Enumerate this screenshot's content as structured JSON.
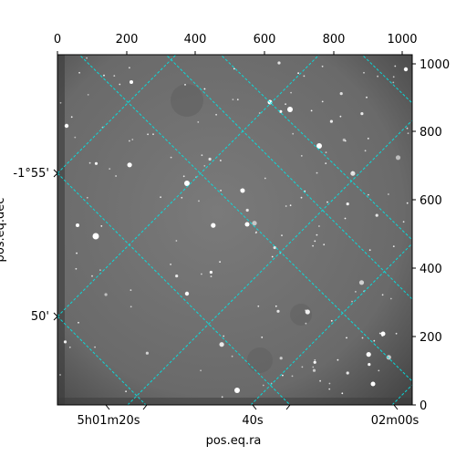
{
  "figure": {
    "top_axis": {
      "ticks": [
        "0",
        "200",
        "400",
        "600",
        "800",
        "1000"
      ]
    },
    "right_axis": {
      "ticks": [
        "0",
        "200",
        "400",
        "600",
        "800",
        "1000"
      ]
    },
    "bottom_axis": {
      "ticks": [
        "5h01m20s",
        "40s",
        "02m00s"
      ],
      "label": "pos.eq.ra"
    },
    "left_axis": {
      "ticks": [
        "-1°55'",
        "50'"
      ],
      "label": "pos.eq.dec"
    },
    "grid_color": "#00e5e5",
    "image_style": "grayscale astronomical star field"
  }
}
